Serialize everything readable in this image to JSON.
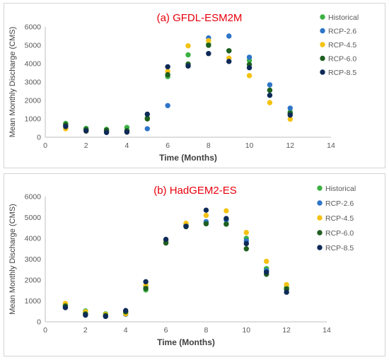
{
  "colors": {
    "Historical": "#3cb043",
    "RCP-2.6": "#2e75c7",
    "RCP-4.5": "#f5c211",
    "RCP-6.0": "#1f5f20",
    "RCP-8.5": "#0e2a57",
    "title": "#e8000b",
    "axis": "#bfbfbf",
    "tick": "#595959"
  },
  "chart_data": [
    {
      "type": "scatter",
      "title": "(a) GFDL-ESM2M",
      "xlabel": "Time (Months)",
      "ylabel": "Mean Monthly Discharge (CMS)",
      "xlim": [
        0,
        14
      ],
      "ylim": [
        0,
        6000
      ],
      "xticks": [
        0,
        2,
        4,
        6,
        8,
        10,
        12,
        14
      ],
      "yticks": [
        0,
        1000,
        2000,
        3000,
        4000,
        5000,
        6000
      ],
      "legend_position": "right",
      "grid": false,
      "series": [
        {
          "name": "Historical",
          "x": [
            1,
            2,
            3,
            4,
            5,
            6,
            7,
            8,
            9,
            10,
            11,
            12
          ],
          "y": [
            750,
            480,
            430,
            530,
            1050,
            3300,
            4480,
            5050,
            4700,
            4180,
            2550,
            1380
          ]
        },
        {
          "name": "RCP-2.6",
          "x": [
            1,
            2,
            3,
            4,
            5,
            6,
            7,
            8,
            9,
            10,
            11,
            12
          ],
          "y": [
            620,
            380,
            320,
            340,
            460,
            1720,
            3900,
            5400,
            5500,
            4350,
            2850,
            1580
          ]
        },
        {
          "name": "RCP-4.5",
          "x": [
            1,
            2,
            3,
            4,
            5,
            6,
            7,
            8,
            9,
            10,
            11,
            12
          ],
          "y": [
            460,
            330,
            280,
            310,
            1000,
            3580,
            4970,
            5250,
            4300,
            3350,
            1880,
            980
          ]
        },
        {
          "name": "RCP-6.0",
          "x": [
            1,
            2,
            3,
            4,
            5,
            6,
            7,
            8,
            9,
            10,
            11,
            12
          ],
          "y": [
            680,
            420,
            380,
            360,
            1000,
            3400,
            3980,
            5000,
            4700,
            3950,
            2560,
            1300
          ]
        },
        {
          "name": "RCP-8.5",
          "x": [
            1,
            2,
            3,
            4,
            5,
            6,
            7,
            8,
            9,
            10,
            11,
            12
          ],
          "y": [
            580,
            340,
            260,
            280,
            1250,
            3830,
            3870,
            4550,
            4120,
            3780,
            2280,
            1200
          ]
        }
      ]
    },
    {
      "type": "scatter",
      "title": "(b) HadGEM2-ES",
      "xlabel": "Time (Months)",
      "ylabel": "Mean Monthly Discharge (CMS)",
      "xlim": [
        0,
        14
      ],
      "ylim": [
        0,
        6000
      ],
      "xticks": [
        0,
        2,
        4,
        6,
        8,
        10,
        12,
        14
      ],
      "yticks": [
        0,
        1000,
        2000,
        3000,
        4000,
        5000,
        6000
      ],
      "legend_position": "right",
      "grid": false,
      "series": [
        {
          "name": "Historical",
          "x": [
            1,
            2,
            3,
            4,
            5,
            6,
            7,
            8,
            9,
            10,
            11,
            12
          ],
          "y": [
            800,
            520,
            380,
            400,
            1530,
            3800,
            4650,
            4720,
            4700,
            4000,
            2550,
            1650
          ]
        },
        {
          "name": "RCP-2.6",
          "x": [
            1,
            2,
            3,
            4,
            5,
            6,
            7,
            8,
            9,
            10,
            11,
            12
          ],
          "y": [
            720,
            400,
            300,
            360,
            1700,
            3880,
            4600,
            4800,
            4880,
            3880,
            2450,
            1550
          ]
        },
        {
          "name": "RCP-4.5",
          "x": [
            1,
            2,
            3,
            4,
            5,
            6,
            7,
            8,
            9,
            10,
            11,
            12
          ],
          "y": [
            880,
            480,
            350,
            380,
            1750,
            3820,
            4720,
            5100,
            5320,
            4280,
            2900,
            1780
          ]
        },
        {
          "name": "RCP-6.0",
          "x": [
            1,
            2,
            3,
            4,
            5,
            6,
            7,
            8,
            9,
            10,
            11,
            12
          ],
          "y": [
            760,
            380,
            300,
            480,
            1600,
            3780,
            4560,
            4700,
            4680,
            3500,
            2280,
            1580
          ]
        },
        {
          "name": "RCP-8.5",
          "x": [
            1,
            2,
            3,
            4,
            5,
            6,
            7,
            8,
            9,
            10,
            11,
            12
          ],
          "y": [
            680,
            320,
            260,
            540,
            1920,
            3950,
            4580,
            5350,
            4950,
            3750,
            2380,
            1420
          ]
        }
      ]
    }
  ]
}
